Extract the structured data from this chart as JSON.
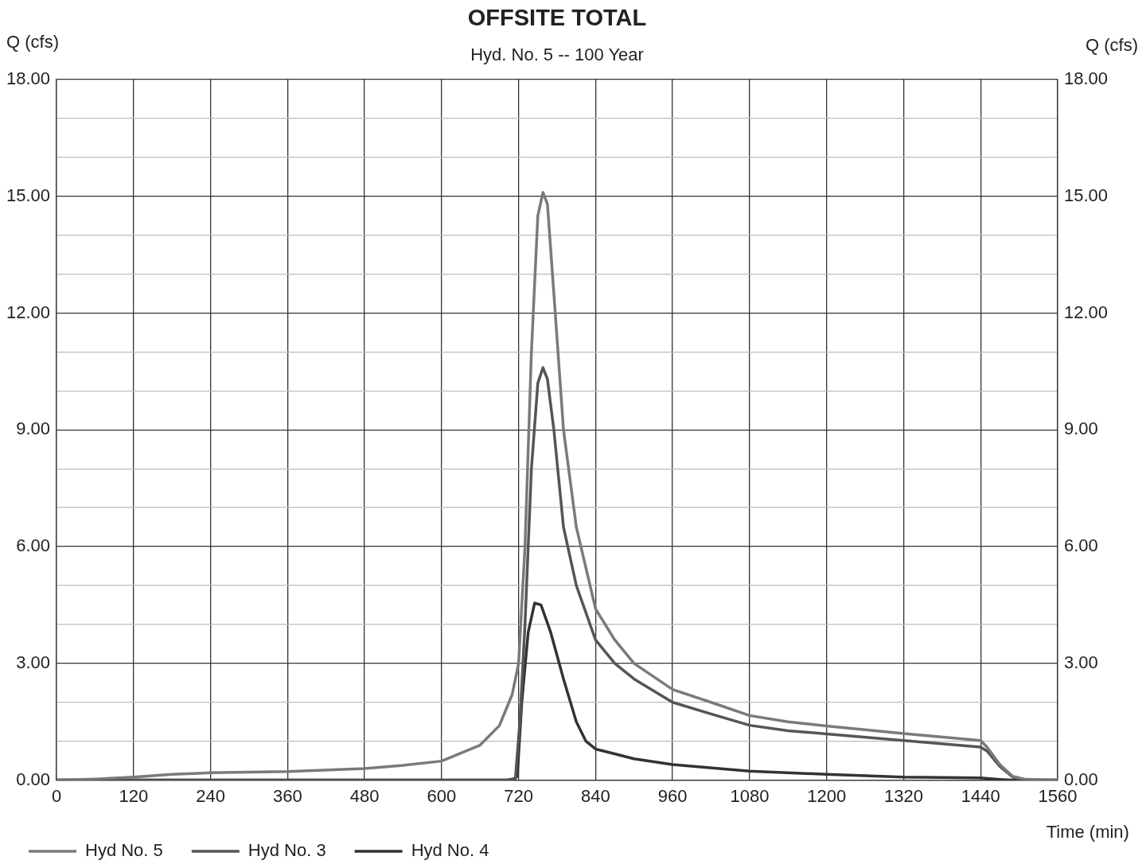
{
  "chart_data": {
    "type": "line",
    "title": "OFFSITE TOTAL",
    "subtitle": "Hyd. No. 5 -- 100 Year",
    "xlabel": "Time (min)",
    "ylabel": "Q (cfs)",
    "y2label": "Q (cfs)",
    "xlim": [
      0,
      1560
    ],
    "xticks": [
      0,
      120,
      240,
      360,
      480,
      600,
      720,
      840,
      960,
      1080,
      1200,
      1320,
      1440,
      1560
    ],
    "ylim": [
      0,
      18
    ],
    "yticks": [
      {
        "value": 0,
        "label": "0.00"
      },
      {
        "value": 1,
        "label": null
      },
      {
        "value": 2,
        "label": null
      },
      {
        "value": 3,
        "label": "3.00"
      },
      {
        "value": 4,
        "label": null
      },
      {
        "value": 5,
        "label": null
      },
      {
        "value": 6,
        "label": "6.00"
      },
      {
        "value": 7,
        "label": null
      },
      {
        "value": 8,
        "label": null
      },
      {
        "value": 9,
        "label": "9.00"
      },
      {
        "value": 10,
        "label": null
      },
      {
        "value": 11,
        "label": null
      },
      {
        "value": 12,
        "label": "12.00"
      },
      {
        "value": 13,
        "label": null
      },
      {
        "value": 14,
        "label": null
      },
      {
        "value": 15,
        "label": "15.00"
      },
      {
        "value": 16,
        "label": null
      },
      {
        "value": 17,
        "label": null
      },
      {
        "value": 18,
        "label": "18.00"
      }
    ],
    "y2lim": [
      0,
      18
    ],
    "y2ticks": [
      {
        "value": 0,
        "label": "0.00"
      },
      {
        "value": 3,
        "label": "3.00"
      },
      {
        "value": 6,
        "label": "6.00"
      },
      {
        "value": 9,
        "label": "9.00"
      },
      {
        "value": 12,
        "label": "12.00"
      },
      {
        "value": 15,
        "label": "15.00"
      },
      {
        "value": 18,
        "label": "18.00"
      }
    ],
    "grid": true,
    "legend": "bottom",
    "marker": "none",
    "line_style": "solid",
    "series": [
      {
        "name": "Hyd No. 5",
        "color": "#7a7a7a",
        "x": [
          0,
          60,
          120,
          180,
          240,
          360,
          480,
          540,
          600,
          660,
          690,
          710,
          720,
          730,
          740,
          750,
          758,
          765,
          775,
          790,
          810,
          840,
          870,
          900,
          960,
          1020,
          1080,
          1140,
          1200,
          1320,
          1440,
          1450,
          1470,
          1490,
          1510,
          1560
        ],
        "values": [
          0,
          0.03,
          0.08,
          0.15,
          0.19,
          0.22,
          0.3,
          0.38,
          0.49,
          0.9,
          1.4,
          2.2,
          3.0,
          6.0,
          11.0,
          14.5,
          15.1,
          14.8,
          12.5,
          9.0,
          6.5,
          4.4,
          3.6,
          3.0,
          2.33,
          2.0,
          1.66,
          1.5,
          1.39,
          1.2,
          1.02,
          0.85,
          0.4,
          0.1,
          0.02,
          0
        ]
      },
      {
        "name": "Hyd No. 3",
        "color": "#555555",
        "x": [
          0,
          700,
          715,
          722,
          730,
          740,
          750,
          758,
          765,
          775,
          790,
          810,
          840,
          870,
          900,
          960,
          1020,
          1080,
          1140,
          1200,
          1320,
          1440,
          1450,
          1470,
          1490,
          1510,
          1560
        ],
        "values": [
          0,
          0,
          0.05,
          1.5,
          4.0,
          8.0,
          10.2,
          10.6,
          10.3,
          9.0,
          6.5,
          5.0,
          3.6,
          3.0,
          2.6,
          2.0,
          1.7,
          1.41,
          1.27,
          1.19,
          1.02,
          0.85,
          0.75,
          0.35,
          0.08,
          0,
          0
        ]
      },
      {
        "name": "Hyd No. 4",
        "color": "#333333",
        "x": [
          0,
          712,
          718,
          725,
          735,
          745,
          755,
          770,
          790,
          810,
          825,
          840,
          900,
          960,
          1080,
          1200,
          1320,
          1440,
          1470,
          1490,
          1560
        ],
        "values": [
          0,
          0,
          0.1,
          2.0,
          3.8,
          4.55,
          4.5,
          3.8,
          2.6,
          1.5,
          1.0,
          0.8,
          0.55,
          0.4,
          0.23,
          0.15,
          0.08,
          0.06,
          0.02,
          0,
          0
        ]
      }
    ]
  }
}
